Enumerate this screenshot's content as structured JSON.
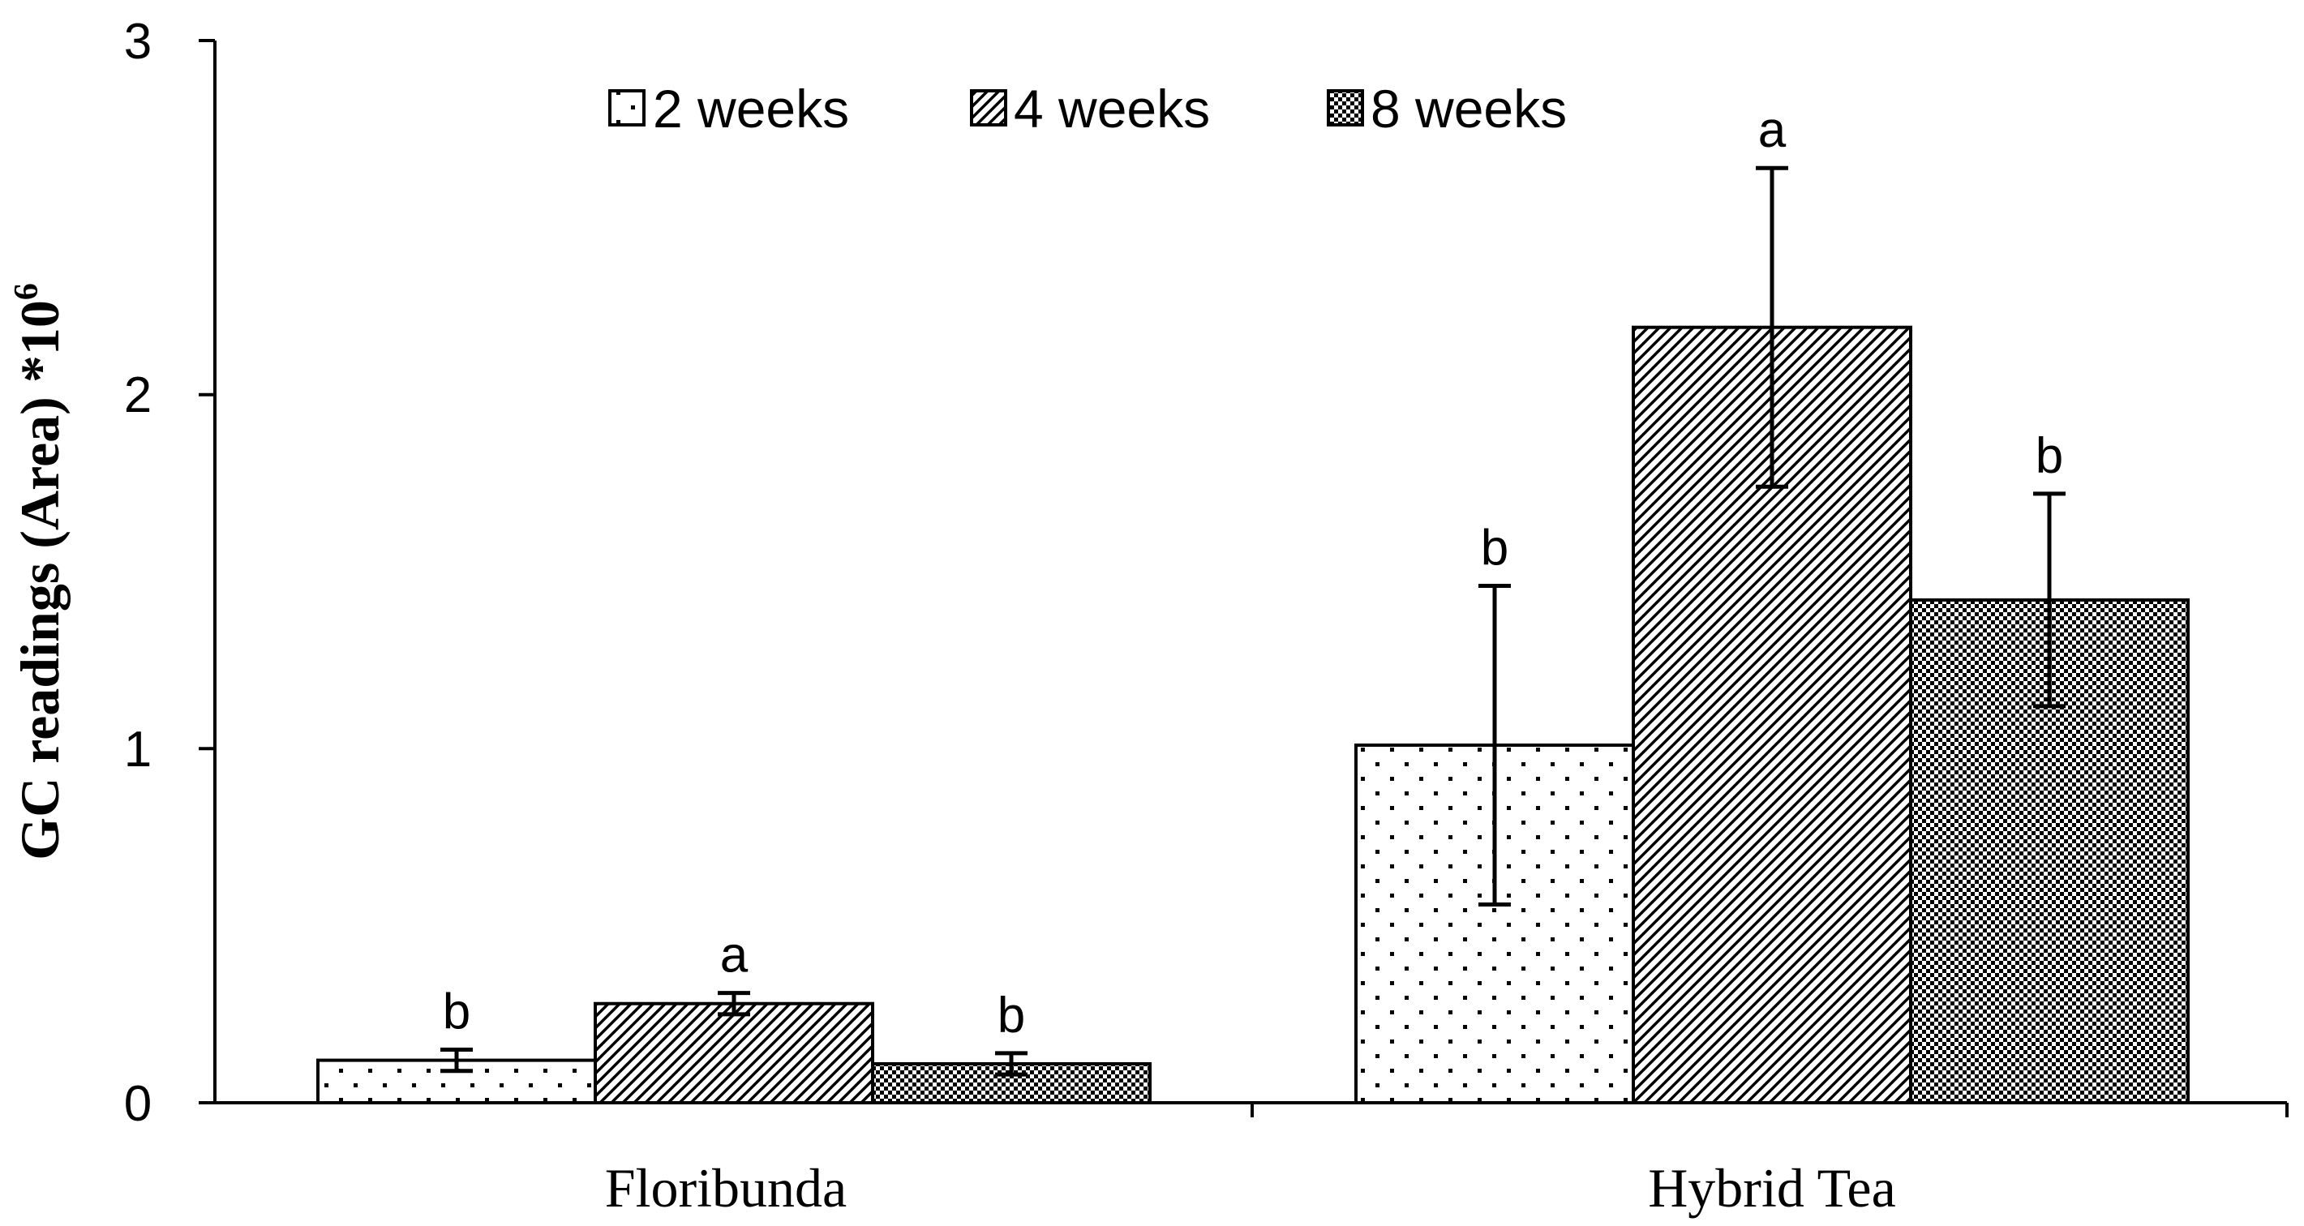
{
  "chart_data": {
    "type": "bar",
    "ylabel": "GC readings (Area) *10",
    "ylabel_superscript": "6",
    "xlabel": "",
    "ylim": [
      0,
      3
    ],
    "yticks": [
      0,
      1,
      2,
      3
    ],
    "categories": [
      "Floribunda",
      "Hybrid Tea"
    ],
    "legend_position": "top-center",
    "series": [
      {
        "name": "2 weeks",
        "pattern": "dots",
        "values": [
          0.12,
          1.01
        ],
        "errors": [
          0.03,
          0.45
        ],
        "significance": [
          "b",
          "b"
        ]
      },
      {
        "name": "4 weeks",
        "pattern": "diagonal-hatch",
        "values": [
          0.28,
          2.19
        ],
        "errors": [
          0.03,
          0.45
        ],
        "significance": [
          "a",
          "a"
        ]
      },
      {
        "name": "8 weeks",
        "pattern": "checkered",
        "values": [
          0.11,
          1.42
        ],
        "errors": [
          0.03,
          0.3
        ],
        "significance": [
          "b",
          "b"
        ]
      }
    ]
  }
}
